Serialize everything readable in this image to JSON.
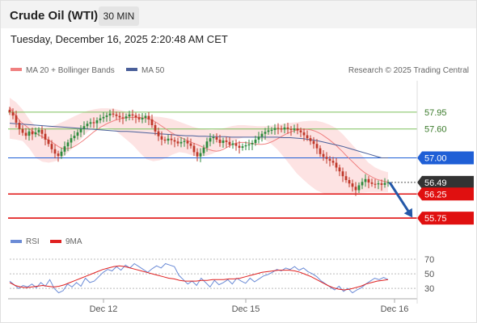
{
  "header": {
    "title": "Crude Oil (WTI)",
    "timeframe": "30 MIN"
  },
  "timestamp": "Tuesday, December 16, 2025 2:20:48 AM CET",
  "legend": {
    "bollinger": "MA 20 + Bollinger Bands",
    "ma50": "MA 50",
    "copyright": "Research © 2025 Trading Central"
  },
  "rsi_legend": {
    "rsi": "RSI",
    "ma": "9MA"
  },
  "colors": {
    "up": "#2e8b3d",
    "down": "#c0392b",
    "bollinger_band": "#fde3e3",
    "ma20": "#f08080",
    "ma50": "#4a5f9a",
    "resistance": "#1f5fd6",
    "support": "#e01010",
    "target_line": "#7bbf5a",
    "current": "#333333",
    "rsi": "#6b8bd6",
    "rsi_ma": "#e02020",
    "arrow": "#2458a8"
  },
  "chart_data": [
    {
      "type": "candlestick",
      "title": "Crude Oil (WTI)",
      "timeframe": "30 MIN",
      "ylim": [
        55.55,
        58.35
      ],
      "x_ticks": [
        {
          "label": "Dec 12",
          "index": 29
        },
        {
          "label": "Dec 15",
          "index": 73
        },
        {
          "label": "Dec 16",
          "index": 119
        }
      ],
      "levels": [
        {
          "label": "57.95",
          "value": 57.95,
          "style": "target"
        },
        {
          "label": "57.60",
          "value": 57.6,
          "style": "target"
        },
        {
          "label": "57.00",
          "value": 57.0,
          "style": "resistance"
        },
        {
          "label": "56.49",
          "value": 56.49,
          "style": "current"
        },
        {
          "label": "56.25",
          "value": 56.25,
          "style": "support"
        },
        {
          "label": "55.75",
          "value": 55.75,
          "style": "support"
        }
      ],
      "close": [
        57.95,
        57.88,
        57.73,
        57.6,
        57.52,
        57.46,
        57.55,
        57.49,
        57.53,
        57.58,
        57.5,
        57.38,
        57.29,
        57.18,
        57.09,
        57.04,
        57.13,
        57.24,
        57.32,
        57.41,
        57.46,
        57.53,
        57.6,
        57.66,
        57.71,
        57.74,
        57.72,
        57.78,
        57.82,
        57.85,
        57.88,
        57.92,
        57.9,
        57.87,
        57.84,
        57.82,
        57.86,
        57.9,
        57.88,
        57.84,
        57.8,
        57.83,
        57.87,
        57.8,
        57.68,
        57.55,
        57.45,
        57.38,
        57.36,
        57.4,
        57.37,
        57.34,
        57.3,
        57.33,
        57.35,
        57.3,
        57.25,
        57.12,
        57.03,
        57.1,
        57.21,
        57.34,
        57.41,
        57.43,
        57.38,
        57.31,
        57.36,
        57.33,
        57.27,
        57.3,
        57.25,
        57.21,
        57.24,
        57.26,
        57.28,
        57.31,
        57.38,
        57.44,
        57.5,
        57.54,
        57.57,
        57.58,
        57.62,
        57.61,
        57.59,
        57.63,
        57.6,
        57.58,
        57.61,
        57.57,
        57.53,
        57.47,
        57.41,
        57.35,
        57.29,
        57.2,
        57.08,
        57.02,
        56.98,
        56.94,
        56.9,
        56.8,
        56.72,
        56.62,
        56.54,
        56.47,
        56.4,
        56.33,
        56.43,
        56.5,
        56.56,
        56.49,
        56.46,
        56.45,
        56.47,
        56.44,
        56.48,
        56.49
      ],
      "ma20": [
        58.05,
        57.95,
        57.85,
        57.76,
        57.7,
        57.64,
        57.58,
        57.53,
        57.49,
        57.45,
        57.41,
        57.37,
        57.33,
        57.28,
        57.23,
        57.2,
        57.19,
        57.2,
        57.22,
        57.26,
        57.31,
        57.36,
        57.42,
        57.48,
        57.54,
        57.59,
        57.64,
        57.68,
        57.72,
        57.75,
        57.78,
        57.8,
        57.82,
        57.83,
        57.84,
        57.84,
        57.84,
        57.84,
        57.83,
        57.82,
        57.8,
        57.77,
        57.73,
        57.68,
        57.63,
        57.58,
        57.53,
        57.49,
        57.45,
        57.42,
        57.38,
        57.35,
        57.32,
        57.29,
        57.26,
        57.23,
        57.2,
        57.17,
        57.15,
        57.14,
        57.15,
        57.18,
        57.22,
        57.26,
        57.29,
        57.31,
        57.32,
        57.32,
        57.31,
        57.3,
        57.29,
        57.28,
        57.28,
        57.29,
        57.31,
        57.34,
        57.38,
        57.42,
        57.46,
        57.5,
        57.53,
        57.56,
        57.58,
        57.59,
        57.59,
        57.59,
        57.58,
        57.56,
        57.53,
        57.49,
        57.44,
        57.39,
        57.33,
        57.27,
        57.2,
        57.13,
        57.05,
        56.98,
        56.91,
        56.84,
        56.77,
        56.71,
        56.66,
        56.62,
        56.58,
        56.55,
        56.53,
        56.51,
        56.5
      ],
      "ma50": [
        57.72,
        57.71,
        57.7,
        57.69,
        57.68,
        57.67,
        57.66,
        57.65,
        57.64,
        57.63,
        57.62,
        57.61,
        57.6,
        57.59,
        57.58,
        57.57,
        57.56,
        57.55,
        57.55,
        57.54,
        57.53,
        57.52,
        57.51,
        57.5,
        57.49,
        57.48,
        57.47,
        57.46,
        57.46,
        57.45,
        57.45,
        57.44,
        57.44,
        57.44,
        57.43,
        57.43,
        57.43,
        57.43,
        57.43,
        57.43,
        57.43,
        57.43,
        57.42,
        57.42,
        57.41,
        57.4,
        57.38,
        57.36,
        57.33,
        57.3,
        57.27,
        57.24,
        57.2,
        57.16,
        57.12,
        57.08,
        57.04,
        57.0,
        57.0
      ],
      "bb_upper": [
        58.25,
        58.15,
        58.0,
        57.8,
        57.65,
        57.62,
        57.64,
        57.68,
        57.74,
        57.8,
        57.87,
        57.93,
        57.98,
        58.01,
        58.03,
        58.03,
        58.02,
        57.99,
        57.95,
        57.92,
        57.9,
        57.88,
        57.86,
        57.85,
        57.83,
        57.8,
        57.75,
        57.7,
        57.65,
        57.61,
        57.59,
        57.58,
        57.59,
        57.62,
        57.66,
        57.68,
        57.68,
        57.67,
        57.66,
        57.66,
        57.67,
        57.69,
        57.71,
        57.73,
        57.74,
        57.76,
        57.77,
        57.77,
        57.74,
        57.69,
        57.62,
        57.5,
        57.35,
        57.2,
        57.05,
        56.9,
        56.8,
        56.74,
        56.7
      ],
      "bb_lower": [
        57.4,
        57.38,
        57.35,
        57.2,
        57.0,
        56.92,
        56.9,
        56.93,
        57.0,
        57.12,
        57.25,
        57.4,
        57.55,
        57.62,
        57.64,
        57.62,
        57.58,
        57.48,
        57.37,
        57.25,
        57.1,
        56.97,
        56.93,
        56.95,
        57.0,
        57.07,
        57.12,
        57.1,
        57.05,
        57.03,
        57.04,
        57.08,
        57.15,
        57.23,
        57.32,
        57.39,
        57.43,
        57.44,
        57.42,
        57.38,
        57.3,
        57.18,
        57.02,
        56.85,
        56.68,
        56.55,
        56.43,
        56.33,
        56.27,
        56.24,
        56.24,
        56.25,
        56.26,
        56.27,
        56.28,
        56.29,
        56.29,
        56.29,
        56.29
      ],
      "forecast": {
        "from": 56.49,
        "to": 55.75
      }
    },
    {
      "type": "line",
      "title": "RSI",
      "ylim": [
        18,
        80
      ],
      "y_ticks": [
        70,
        50,
        30
      ],
      "x_ticks": [
        "Dec 12",
        "Dec 15",
        "Dec 16"
      ],
      "series": [
        {
          "name": "RSI",
          "values": [
            40,
            35,
            30,
            34,
            32,
            36,
            31,
            38,
            33,
            42,
            30,
            24,
            27,
            36,
            32,
            38,
            33,
            44,
            38,
            40,
            46,
            52,
            56,
            54,
            60,
            55,
            62,
            58,
            64,
            60,
            56,
            52,
            57,
            61,
            58,
            64,
            62,
            60,
            48,
            42,
            36,
            40,
            34,
            44,
            38,
            32,
            41,
            35,
            38,
            42,
            36,
            44,
            40,
            37,
            44,
            39,
            43,
            47,
            49,
            52,
            56,
            54,
            58,
            56,
            60,
            55,
            58,
            53,
            50,
            46,
            40,
            36,
            32,
            28,
            33,
            26,
            30,
            24,
            28,
            31,
            36,
            40,
            44,
            42,
            45,
            42
          ]
        },
        {
          "name": "9MA",
          "values": [
            38,
            34,
            32,
            31,
            32,
            33,
            34,
            33,
            32,
            33,
            35,
            38,
            41,
            44,
            47,
            50,
            53,
            56,
            58,
            60,
            61,
            60,
            58,
            56,
            54,
            52,
            50,
            48,
            46,
            44,
            43,
            41,
            40,
            40,
            40,
            41,
            41,
            42,
            42,
            42,
            43,
            43,
            44,
            46,
            48,
            50,
            52,
            53,
            54,
            55,
            55,
            55,
            54,
            52,
            49,
            46,
            42,
            38,
            34,
            31,
            29,
            28,
            29,
            31,
            33,
            36,
            38,
            40,
            41,
            42
          ]
        }
      ]
    }
  ]
}
